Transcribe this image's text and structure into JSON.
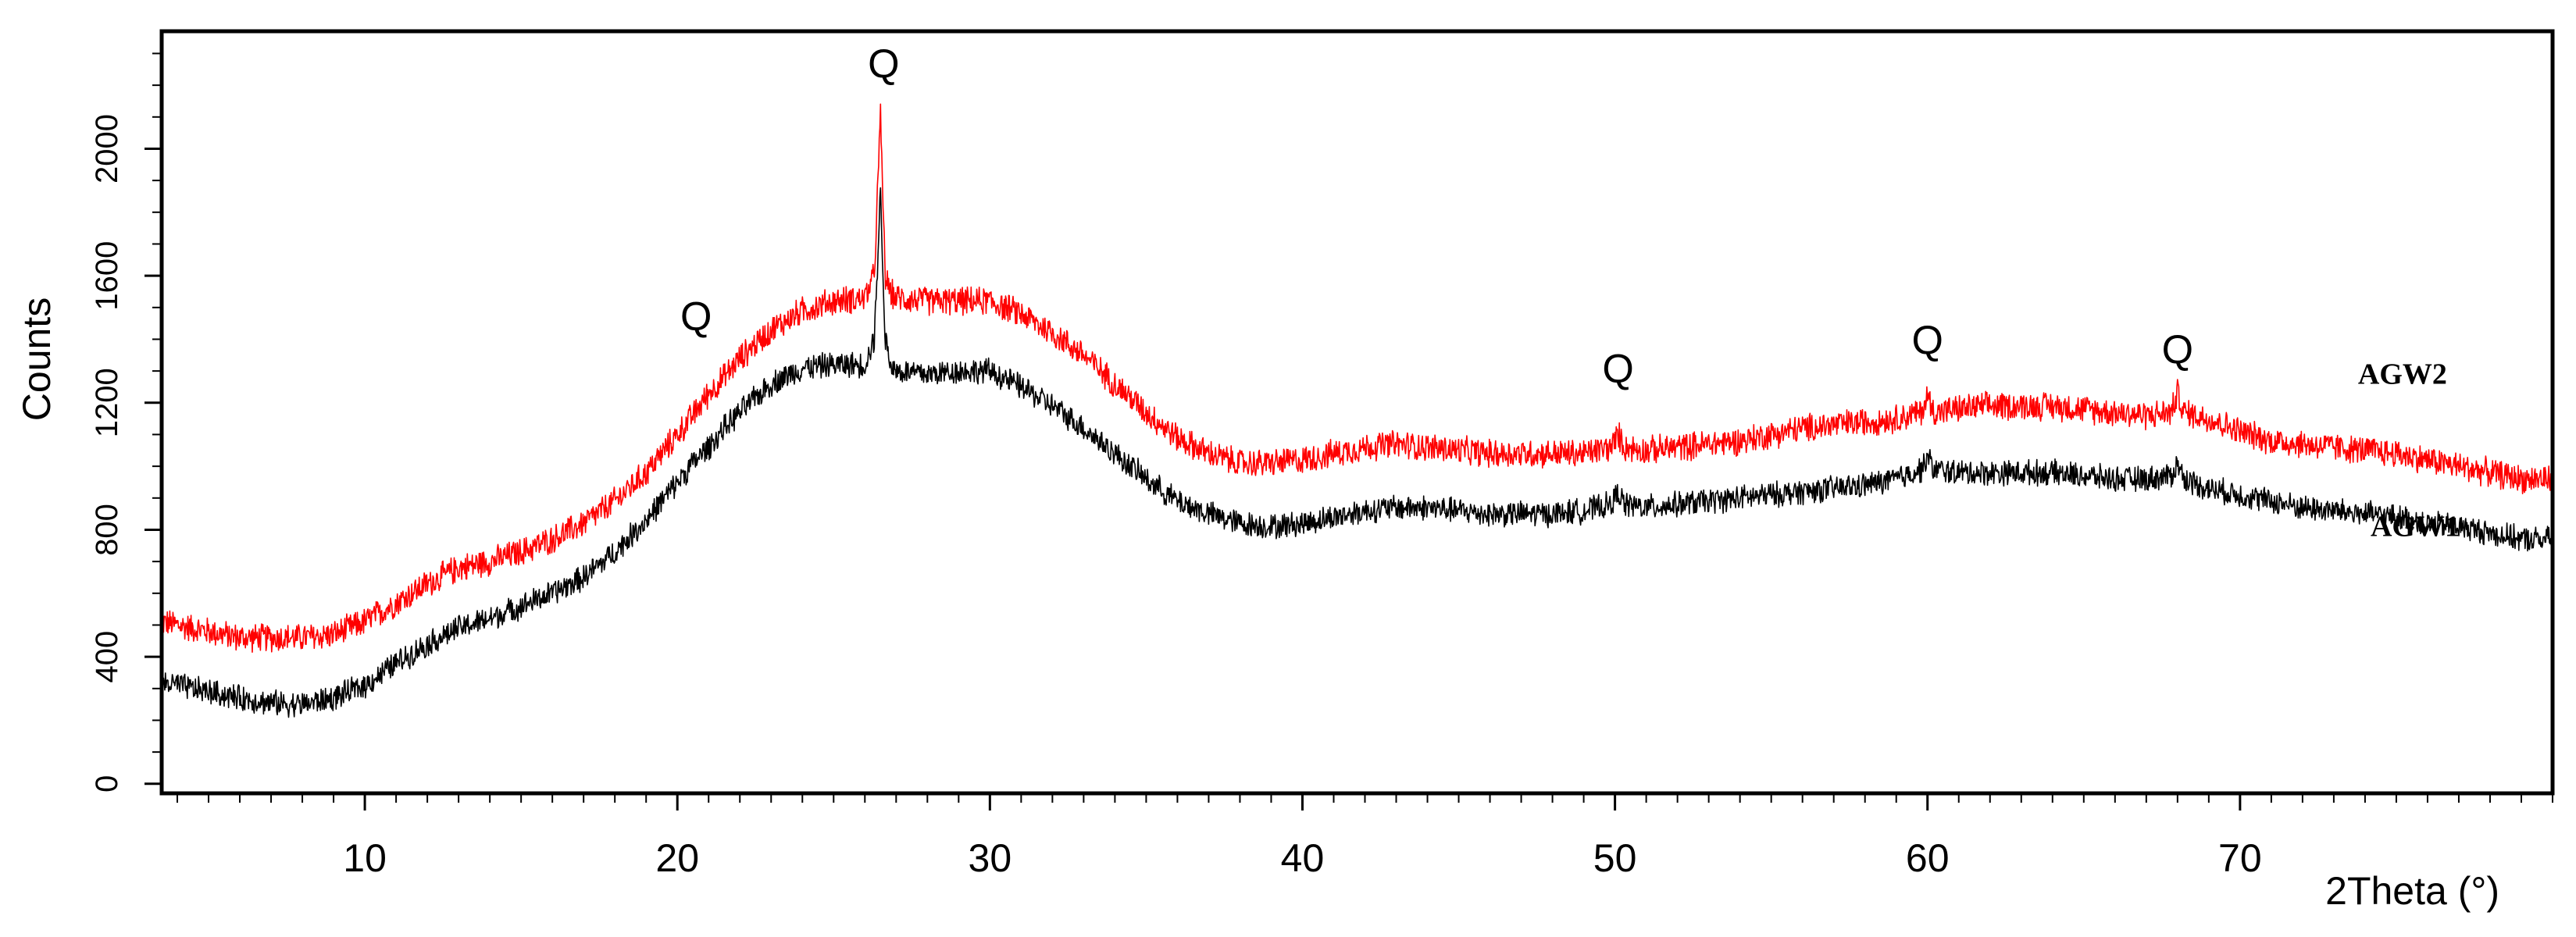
{
  "chart_data": {
    "type": "line",
    "xlabel": "2Theta (°)",
    "ylabel": "Counts",
    "xlim": [
      3.5,
      80
    ],
    "ylim": [
      -30,
      2370
    ],
    "xticks": [
      10,
      20,
      30,
      40,
      50,
      60,
      70
    ],
    "xticks_minor_step": 1,
    "yticks": [
      0,
      400,
      800,
      1200,
      1600,
      2000
    ],
    "yticks_minor_step": 100,
    "grid": false,
    "legend": "none",
    "series": [
      {
        "name": "AGW2",
        "color": "#ff0000",
        "noise": 50,
        "x": [
          3.5,
          5,
          6,
          7,
          8,
          9,
          10,
          11,
          12,
          13,
          14,
          15,
          16,
          17,
          18,
          19,
          20,
          20.5,
          21,
          21.5,
          22,
          23,
          24,
          25,
          26,
          26.3,
          26.5,
          26.65,
          26.8,
          27,
          28,
          29,
          30,
          31,
          32,
          33,
          34,
          35,
          36,
          37,
          38,
          39,
          40,
          41,
          42,
          43,
          44,
          45,
          46,
          47,
          48,
          49,
          49.9,
          50.1,
          50.3,
          51,
          52,
          53,
          54,
          55,
          56,
          57,
          58,
          59,
          59.8,
          60,
          60.2,
          61,
          62,
          63,
          64,
          65,
          66,
          67,
          67.8,
          68,
          68.2,
          69,
          70,
          71,
          72,
          73,
          74,
          75,
          76,
          77,
          78,
          79,
          80
        ],
        "y": [
          510,
          480,
          460,
          460,
          460,
          470,
          510,
          570,
          630,
          680,
          700,
          730,
          770,
          820,
          890,
          980,
          1100,
          1160,
          1230,
          1280,
          1340,
          1430,
          1490,
          1520,
          1530,
          1600,
          2100,
          1600,
          1550,
          1530,
          1520,
          1520,
          1520,
          1480,
          1420,
          1350,
          1260,
          1170,
          1090,
          1040,
          1010,
          1010,
          1020,
          1040,
          1060,
          1070,
          1060,
          1050,
          1040,
          1040,
          1040,
          1040,
          1060,
          1100,
          1060,
          1050,
          1060,
          1070,
          1080,
          1100,
          1120,
          1130,
          1140,
          1150,
          1170,
          1220,
          1170,
          1180,
          1190,
          1190,
          1190,
          1180,
          1170,
          1160,
          1170,
          1230,
          1170,
          1150,
          1110,
          1080,
          1070,
          1060,
          1050,
          1040,
          1020,
          1000,
          980,
          960,
          960
        ]
      },
      {
        "name": "AGW1",
        "color": "#000000",
        "noise": 45,
        "x": [
          3.5,
          5,
          6,
          7,
          8,
          9,
          10,
          11,
          12,
          13,
          14,
          15,
          16,
          17,
          18,
          19,
          20,
          20.5,
          21,
          21.5,
          22,
          23,
          24,
          25,
          26,
          26.3,
          26.5,
          26.65,
          26.8,
          27,
          28,
          29,
          30,
          31,
          32,
          33,
          34,
          35,
          36,
          37,
          38,
          39,
          40,
          41,
          42,
          43,
          44,
          45,
          46,
          47,
          48,
          49,
          49.9,
          50.1,
          50.3,
          51,
          52,
          53,
          54,
          55,
          56,
          57,
          58,
          59,
          59.8,
          60,
          60.2,
          61,
          62,
          63,
          64,
          65,
          66,
          67,
          67.8,
          68,
          68.2,
          69,
          70,
          71,
          72,
          73,
          74,
          75,
          76,
          77,
          78,
          79,
          80
        ],
        "y": [
          320,
          290,
          270,
          255,
          250,
          270,
          310,
          380,
          440,
          490,
          520,
          560,
          600,
          650,
          730,
          830,
          950,
          1010,
          1060,
          1120,
          1170,
          1260,
          1310,
          1320,
          1320,
          1400,
          1860,
          1400,
          1330,
          1300,
          1290,
          1300,
          1300,
          1250,
          1190,
          1120,
          1040,
          960,
          890,
          850,
          820,
          810,
          820,
          840,
          860,
          870,
          870,
          860,
          850,
          850,
          850,
          860,
          880,
          920,
          880,
          870,
          880,
          890,
          900,
          910,
          920,
          930,
          940,
          960,
          990,
          1030,
          990,
          980,
          980,
          980,
          980,
          970,
          960,
          960,
          970,
          1010,
          960,
          930,
          910,
          890,
          870,
          860,
          850,
          840,
          820,
          810,
          790,
          770,
          770
        ]
      }
    ],
    "series_labels": [
      {
        "text": "AGW2",
        "x": 75.2,
        "y": 1260,
        "color": "#000000"
      },
      {
        "text": "AGW1",
        "x": 75.6,
        "y": 780,
        "color": "#000000"
      }
    ],
    "annotations": [
      {
        "text": "Q",
        "x": 20.6,
        "y": 1430
      },
      {
        "text": "Q",
        "x": 26.6,
        "y": 2225
      },
      {
        "text": "Q",
        "x": 50.1,
        "y": 1265
      },
      {
        "text": "Q",
        "x": 60.0,
        "y": 1355
      },
      {
        "text": "Q",
        "x": 68.0,
        "y": 1325
      }
    ]
  }
}
